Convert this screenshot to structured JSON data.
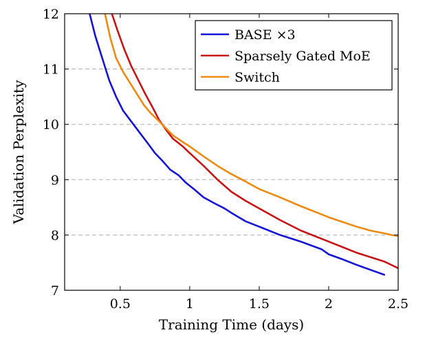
{
  "chart_data": {
    "type": "line",
    "title": "",
    "xlabel": "Training Time (days)",
    "ylabel": "Validation Perplexity",
    "xlim": [
      0.1,
      2.5
    ],
    "ylim": [
      7,
      12
    ],
    "xticks": [
      0.5,
      1,
      1.5,
      2,
      2.5
    ],
    "xtick_labels": [
      "0.5",
      "1",
      "1.5",
      "2",
      "2.5"
    ],
    "yticks": [
      7,
      8,
      9,
      10,
      11,
      12
    ],
    "ytick_labels": [
      "7",
      "8",
      "9",
      "10",
      "11",
      "12"
    ],
    "grid": "horizontal dashed",
    "legend_position": "top-right",
    "series": [
      {
        "name": "BASE ×3",
        "color": "#1414d6",
        "x": [
          0.28,
          0.32,
          0.37,
          0.42,
          0.47,
          0.52,
          0.58,
          0.64,
          0.7,
          0.75,
          0.8,
          0.86,
          0.92,
          0.97,
          1.03,
          1.1,
          1.18,
          1.25,
          1.3,
          1.4,
          1.5,
          1.65,
          1.8,
          1.95,
          2.0,
          2.1,
          2.2,
          2.3,
          2.4
        ],
        "y": [
          12.0,
          11.6,
          11.2,
          10.8,
          10.5,
          10.25,
          10.05,
          9.85,
          9.65,
          9.48,
          9.35,
          9.18,
          9.08,
          8.95,
          8.83,
          8.68,
          8.57,
          8.48,
          8.4,
          8.25,
          8.15,
          8.0,
          7.88,
          7.74,
          7.65,
          7.56,
          7.46,
          7.37,
          7.28
        ]
      },
      {
        "name": "Sparsely Gated MoE",
        "color": "#c81414",
        "x": [
          0.44,
          0.48,
          0.53,
          0.58,
          0.63,
          0.68,
          0.73,
          0.78,
          0.83,
          0.88,
          0.95,
          1.0,
          1.1,
          1.2,
          1.3,
          1.4,
          1.5,
          1.65,
          1.8,
          2.0,
          2.2,
          2.4,
          2.5
        ],
        "y": [
          12.0,
          11.7,
          11.35,
          11.05,
          10.8,
          10.55,
          10.32,
          10.08,
          9.9,
          9.74,
          9.6,
          9.48,
          9.25,
          9.0,
          8.78,
          8.62,
          8.48,
          8.27,
          8.08,
          7.88,
          7.68,
          7.52,
          7.4
        ]
      },
      {
        "name": "Switch",
        "color": "#ee8a11",
        "x": [
          0.39,
          0.43,
          0.47,
          0.52,
          0.57,
          0.62,
          0.67,
          0.72,
          0.77,
          0.82,
          0.88,
          0.95,
          1.0,
          1.1,
          1.2,
          1.3,
          1.4,
          1.5,
          1.65,
          1.8,
          2.0,
          2.2,
          2.3,
          2.4,
          2.45,
          2.5
        ],
        "y": [
          12.0,
          11.55,
          11.2,
          10.95,
          10.75,
          10.55,
          10.35,
          10.2,
          10.08,
          9.95,
          9.8,
          9.68,
          9.6,
          9.42,
          9.25,
          9.1,
          8.97,
          8.83,
          8.68,
          8.52,
          8.32,
          8.15,
          8.08,
          8.03,
          8.0,
          7.98
        ]
      }
    ]
  }
}
